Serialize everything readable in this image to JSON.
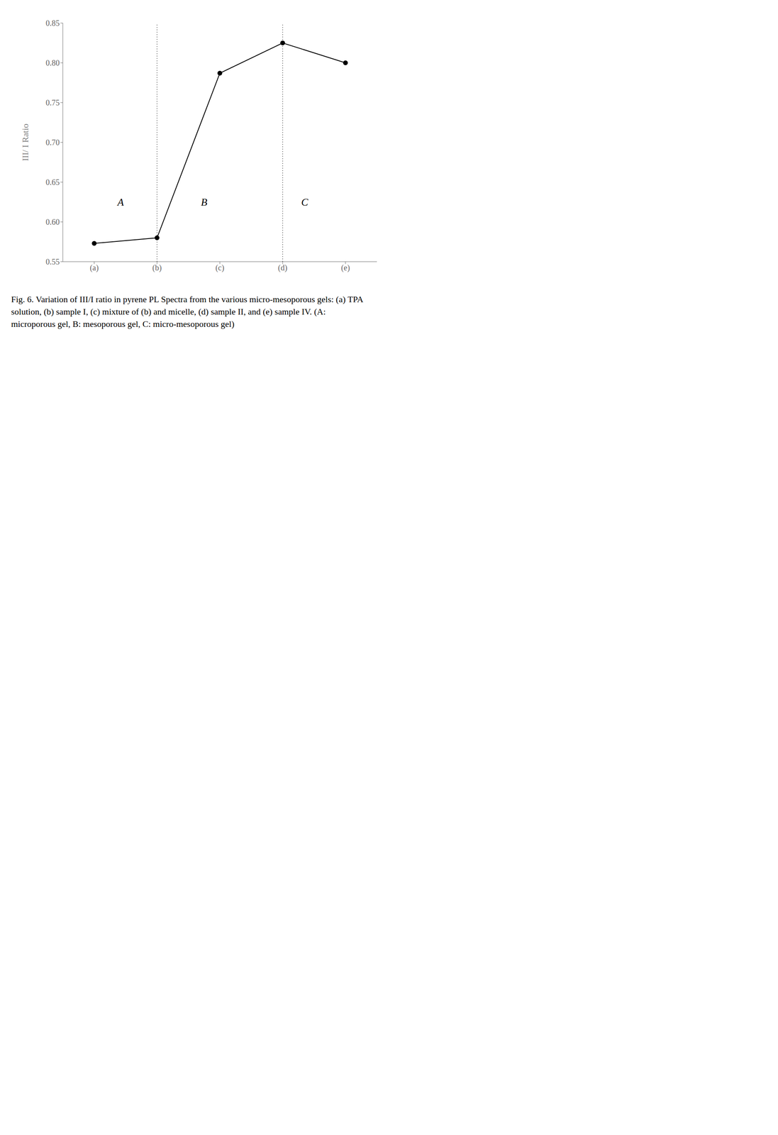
{
  "chart_data": {
    "type": "line",
    "title": "Fig. 6. Variation of III/I ratio in pyrene PL Spectra from the various micro-mesoporous gels: (a) TPA solution, (b) sample I, (c) mixture of (b) and micelle, (d) sample II, and (e) sample IV. (A: microporous gel, B: mesoporous gel, C: micro-mesoporous gel)",
    "y_label": "III/ I Ratio",
    "categories": [
      "(a)",
      "(b)",
      "(c)",
      "(d)",
      "(e)"
    ],
    "values": [
      0.573,
      0.58,
      0.787,
      0.825,
      0.8
    ],
    "color": "#000000",
    "marker": "o",
    "line_style": "solid",
    "ylim": [
      0.55,
      0.85
    ],
    "yticks": [
      0.55,
      {
        "value": 0.6,
        "label": "0.60"
      },
      0.65,
      {
        "value": 0.7,
        "label": "0.70"
      },
      0.75,
      {
        "value": 0.8,
        "label": "0.80"
      },
      0.85
    ],
    "grid": false,
    "vlines": [
      "(b)",
      "(d)"
    ],
    "annotations": [
      {
        "text": "A",
        "x": 0.42,
        "y": 0.625
      },
      {
        "text": "B",
        "x": 1.75,
        "y": 0.625
      },
      {
        "text": "C",
        "x": 3.35,
        "y": 0.625
      }
    ]
  }
}
